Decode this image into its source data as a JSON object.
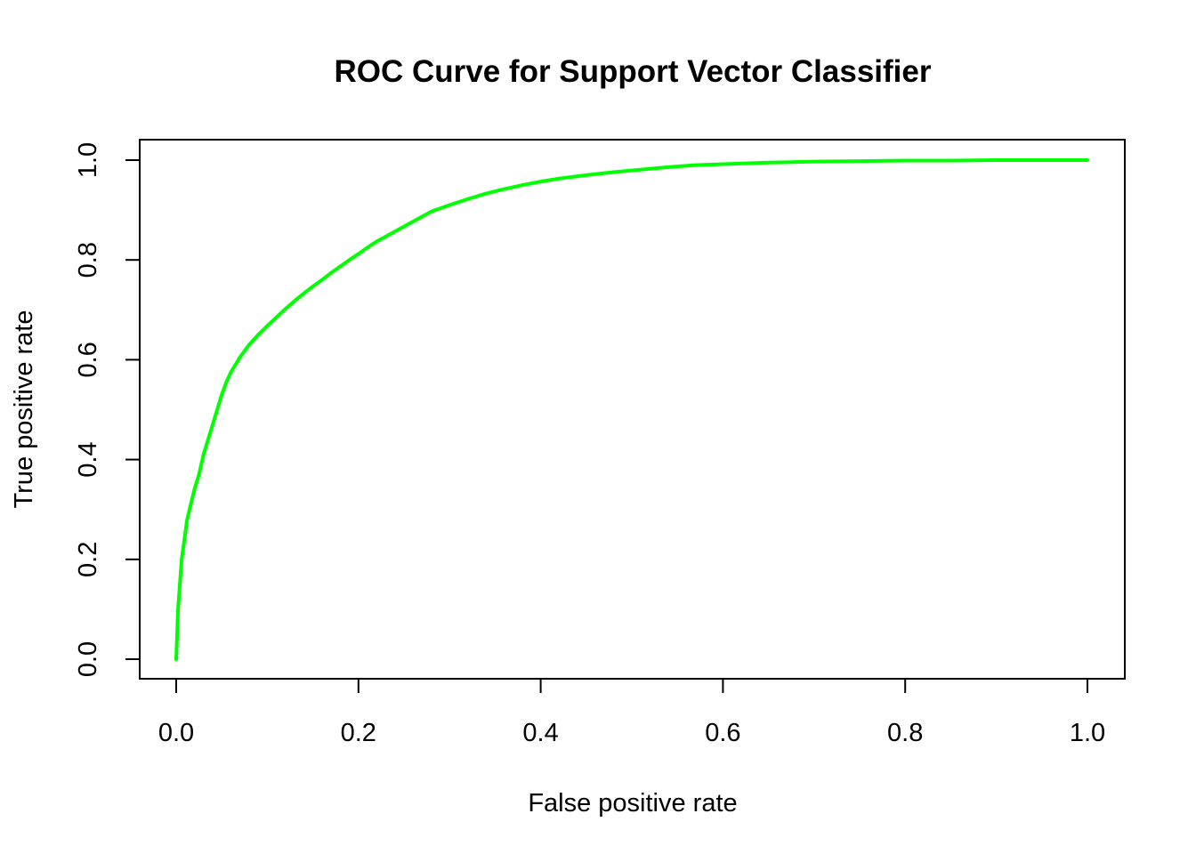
{
  "chart_data": {
    "type": "line",
    "title": "ROC Curve for Support Vector Classifier",
    "xlabel": "False positive rate",
    "ylabel": "True positive rate",
    "xlim": [
      0,
      1
    ],
    "ylim": [
      0,
      1
    ],
    "x_ticks": [
      "0.0",
      "0.2",
      "0.4",
      "0.6",
      "0.8",
      "1.0"
    ],
    "y_ticks": [
      "0.0",
      "0.2",
      "0.4",
      "0.6",
      "0.8",
      "1.0"
    ],
    "grid": false,
    "legend": "none",
    "series": [
      {
        "color": "#00ff00",
        "x": [
          0.0,
          0.001,
          0.002,
          0.004,
          0.006,
          0.009,
          0.012,
          0.016,
          0.02,
          0.025,
          0.03,
          0.035,
          0.04,
          0.045,
          0.05,
          0.055,
          0.06,
          0.065,
          0.07,
          0.08,
          0.09,
          0.1,
          0.11,
          0.12,
          0.13,
          0.14,
          0.15,
          0.16,
          0.17,
          0.18,
          0.19,
          0.2,
          0.21,
          0.22,
          0.23,
          0.24,
          0.25,
          0.26,
          0.27,
          0.28,
          0.3,
          0.32,
          0.34,
          0.36,
          0.38,
          0.4,
          0.42,
          0.45,
          0.48,
          0.51,
          0.54,
          0.57,
          0.6,
          0.65,
          0.7,
          0.75,
          0.8,
          0.85,
          0.9,
          0.95,
          1.0
        ],
        "y": [
          0.0,
          0.05,
          0.1,
          0.15,
          0.2,
          0.24,
          0.28,
          0.31,
          0.34,
          0.37,
          0.41,
          0.44,
          0.47,
          0.5,
          0.53,
          0.555,
          0.575,
          0.59,
          0.605,
          0.63,
          0.65,
          0.668,
          0.685,
          0.702,
          0.718,
          0.733,
          0.747,
          0.76,
          0.774,
          0.787,
          0.8,
          0.812,
          0.825,
          0.837,
          0.847,
          0.857,
          0.867,
          0.877,
          0.887,
          0.897,
          0.91,
          0.922,
          0.933,
          0.942,
          0.95,
          0.957,
          0.963,
          0.97,
          0.976,
          0.981,
          0.986,
          0.99,
          0.992,
          0.995,
          0.997,
          0.998,
          0.999,
          0.999,
          1.0,
          1.0,
          1.0
        ]
      }
    ]
  }
}
